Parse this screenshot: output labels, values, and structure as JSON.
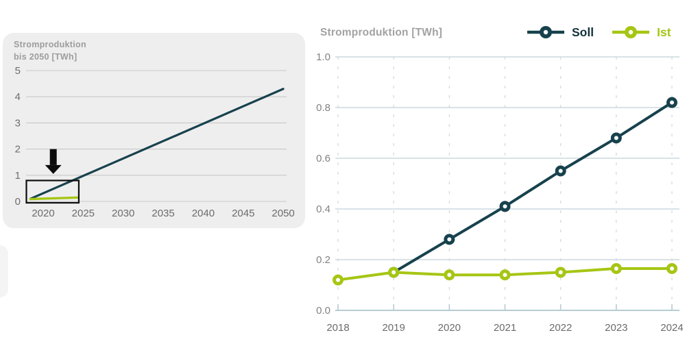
{
  "colors": {
    "soll": "#17424d",
    "ist": "#a5c614",
    "soll_label": "#15333d",
    "ist_label": "#a5c614",
    "card_bg": "#efeeee",
    "grid_left": "#c8c8c8",
    "grid_right_solid": "#ccd9de",
    "grid_right_dashed": "#d9d9d9",
    "axis_right": "#b7ccd3",
    "tick_label_left": "#6e6e6e",
    "tick_label_right": "#828282",
    "year_label": "#6b6b6b",
    "title_gray": "#a2a2a2",
    "annotation_black": "#0d0d0d"
  },
  "chart_data": [
    {
      "id": "overview",
      "type": "line",
      "title": "Stromproduktion bis 2050 [TWh]",
      "title_lines": [
        "Stromproduktion",
        "bis 2050 [TWh]"
      ],
      "xlabel": "",
      "ylabel": "TWh",
      "x_ticks": [
        2020,
        2025,
        2030,
        2035,
        2040,
        2045,
        2050
      ],
      "y_ticks": [
        0,
        1,
        2,
        3,
        4,
        5
      ],
      "ylim": [
        0,
        5.4
      ],
      "grid": "horizontal",
      "legend_position": "none",
      "series": [
        {
          "name": "Soll",
          "color": "#17424d",
          "points": [
            [
              2018.4,
              0.1
            ],
            [
              2050,
              4.3
            ]
          ]
        },
        {
          "name": "Ist",
          "color": "#a5c614",
          "points": [
            [
              2018.4,
              0.09
            ],
            [
              2024.4,
              0.15
            ]
          ]
        }
      ],
      "annotations": [
        {
          "type": "arrow-down",
          "x": 2021.26,
          "y_top": 2.0,
          "y_tip": 1.05,
          "color": "#0d0d0d"
        },
        {
          "type": "rect",
          "x0": 2017.9,
          "x1": 2024.45,
          "y0": 0,
          "y1": 0.8,
          "color": "#0d0d0d"
        }
      ]
    },
    {
      "id": "detail",
      "type": "line",
      "title": "Stromproduktion [TWh]",
      "xlabel": "",
      "ylabel": "TWh",
      "x": [
        2018,
        2019,
        2020,
        2021,
        2022,
        2023,
        2024
      ],
      "x_tick_labels": [
        "2018",
        "2019",
        "2020",
        "2021",
        "2022",
        "2023",
        "2024"
      ],
      "y_ticks": [
        0.0,
        0.2,
        0.4,
        0.6,
        0.8,
        1.0
      ],
      "y_tick_labels": [
        "0.0",
        "0.2",
        "0.4",
        "0.6",
        "0.8",
        "1.0"
      ],
      "ylim": [
        0,
        1.0
      ],
      "grid": "both",
      "legend_position": "top-right",
      "series": [
        {
          "name": "Soll",
          "color": "#17424d",
          "label_color": "#15333d",
          "marker": "circle-dot",
          "points": [
            [
              2019,
              0.15
            ],
            [
              2020,
              0.28
            ],
            [
              2021,
              0.41
            ],
            [
              2022,
              0.55
            ],
            [
              2023,
              0.68
            ],
            [
              2024,
              0.82
            ]
          ]
        },
        {
          "name": "Ist",
          "color": "#a5c614",
          "label_color": "#a5c614",
          "marker": "circle-dot",
          "points": [
            [
              2018,
              0.12
            ],
            [
              2019,
              0.15
            ],
            [
              2020,
              0.14
            ],
            [
              2021,
              0.14
            ],
            [
              2022,
              0.15
            ],
            [
              2023,
              0.165
            ],
            [
              2024,
              0.165
            ]
          ]
        }
      ]
    }
  ]
}
